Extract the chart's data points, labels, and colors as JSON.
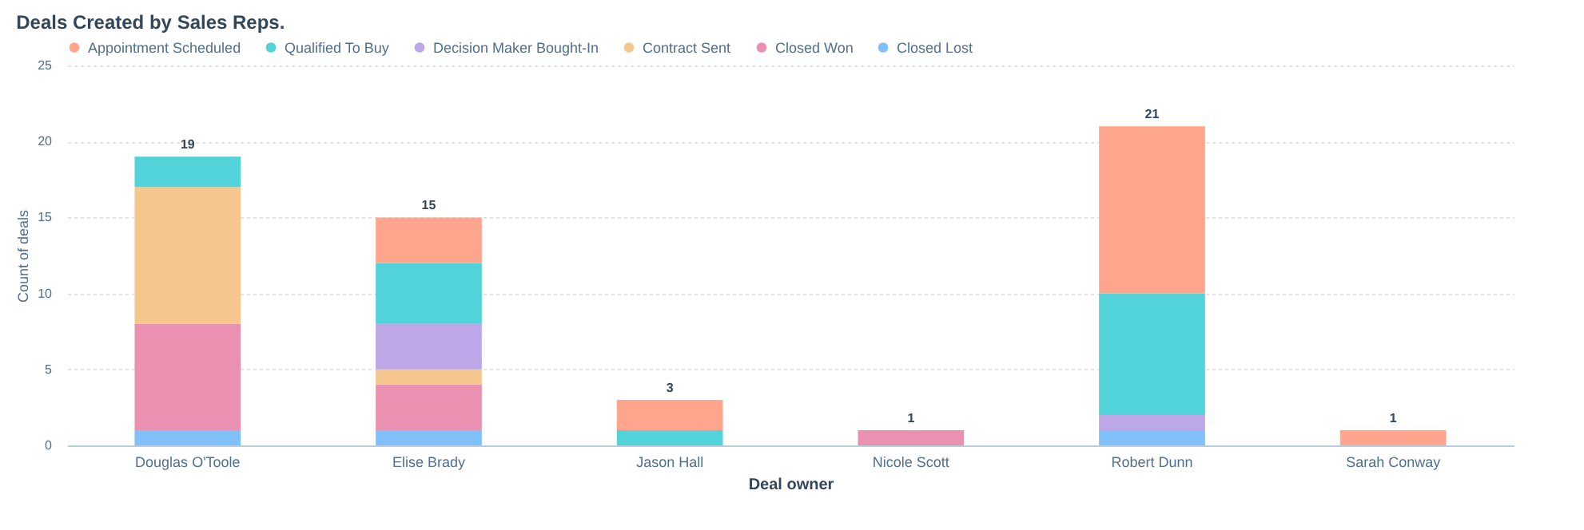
{
  "chart_data": {
    "type": "bar",
    "title": "Deals Created by Sales Reps.",
    "xlabel": "Deal owner",
    "ylabel": "Count of deals",
    "stacked": true,
    "legend": "top left",
    "grid": "y",
    "categories": [
      "Douglas O'Toole",
      "Elise Brady",
      "Jason Hall",
      "Nicole Scott",
      "Robert Dunn",
      "Sarah Conway"
    ],
    "series": [
      {
        "name": "Closed Lost",
        "color": "#7fc1f8",
        "values": [
          1,
          1,
          0,
          0,
          1,
          0
        ]
      },
      {
        "name": "Closed Won",
        "color": "#ea90b1",
        "values": [
          7,
          3,
          0,
          1,
          0,
          0
        ]
      },
      {
        "name": "Contract Sent",
        "color": "#f5c78e",
        "values": [
          9,
          1,
          0,
          0,
          0,
          0
        ]
      },
      {
        "name": "Decision Maker Bought-In",
        "color": "#bea7e6",
        "values": [
          0,
          3,
          0,
          0,
          1,
          0
        ]
      },
      {
        "name": "Qualified To Buy",
        "color": "#51d3d9",
        "values": [
          2,
          4,
          1,
          0,
          8,
          0
        ]
      },
      {
        "name": "Appointment Scheduled",
        "color": "#fea58e",
        "values": [
          0,
          3,
          2,
          0,
          11,
          1
        ]
      }
    ],
    "totals": [
      "19",
      "15",
      "3",
      "1",
      "21",
      "1"
    ],
    "ylim": [
      0,
      25
    ],
    "yticks": [
      0,
      5,
      10,
      15,
      20,
      25
    ]
  }
}
